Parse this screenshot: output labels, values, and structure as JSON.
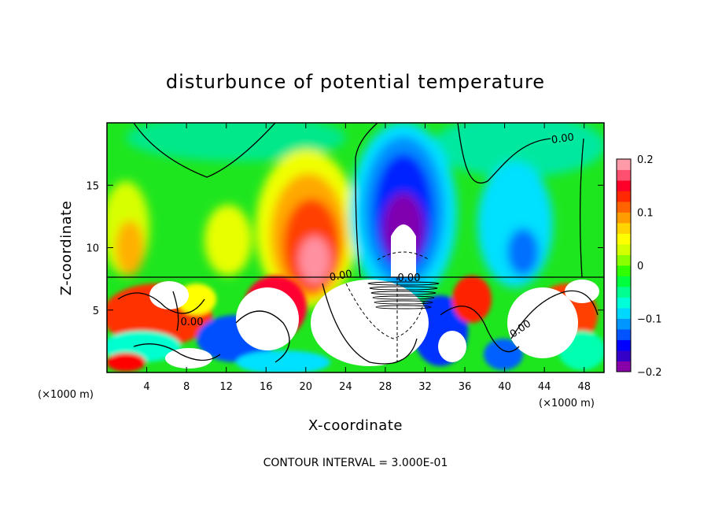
{
  "chart_data": {
    "type": "heatmap",
    "title": "disturbunce of potential temperature",
    "xlabel": "X-coordinate",
    "ylabel": "Z-coordinate",
    "x_unit": "(×1000 m)",
    "x_unit_right": "(×1000 m)",
    "xlim": [
      0,
      50
    ],
    "ylim": [
      0,
      20
    ],
    "x_ticks": [
      4,
      8,
      12,
      16,
      20,
      24,
      28,
      32,
      36,
      40,
      44,
      48
    ],
    "x_tick_labels": [
      "4",
      "8",
      "12",
      "16",
      "20",
      "24",
      "28",
      "32",
      "36",
      "40",
      "44",
      "48"
    ],
    "y_ticks": [
      5,
      10,
      15
    ],
    "y_tick_labels": [
      "5",
      "10",
      "15"
    ],
    "colorbar": {
      "range": [
        -0.2,
        0.2
      ],
      "ticks": [
        0.2,
        0.1,
        0,
        -0.1,
        -0.2
      ],
      "tick_labels": [
        "0.2",
        "0.1",
        "0",
        "−0.1",
        "−0.2"
      ],
      "colors": [
        "#8800a8",
        "#3400c8",
        "#0000ff",
        "#0054ff",
        "#0096ff",
        "#00d8ff",
        "#00ffd8",
        "#00ff90",
        "#00ff3c",
        "#30ff00",
        "#8aff00",
        "#d4ff00",
        "#ffff00",
        "#ffd400",
        "#ff9c00",
        "#ff6400",
        "#ff2800",
        "#ff0028",
        "#ff5070",
        "#ff9aa8"
      ]
    },
    "contour_labels": [
      "0.00",
      "0.00",
      "0.00",
      "0.00",
      "0.00"
    ],
    "annotation": "CONTOUR INTERVAL = 3.000E-01"
  }
}
